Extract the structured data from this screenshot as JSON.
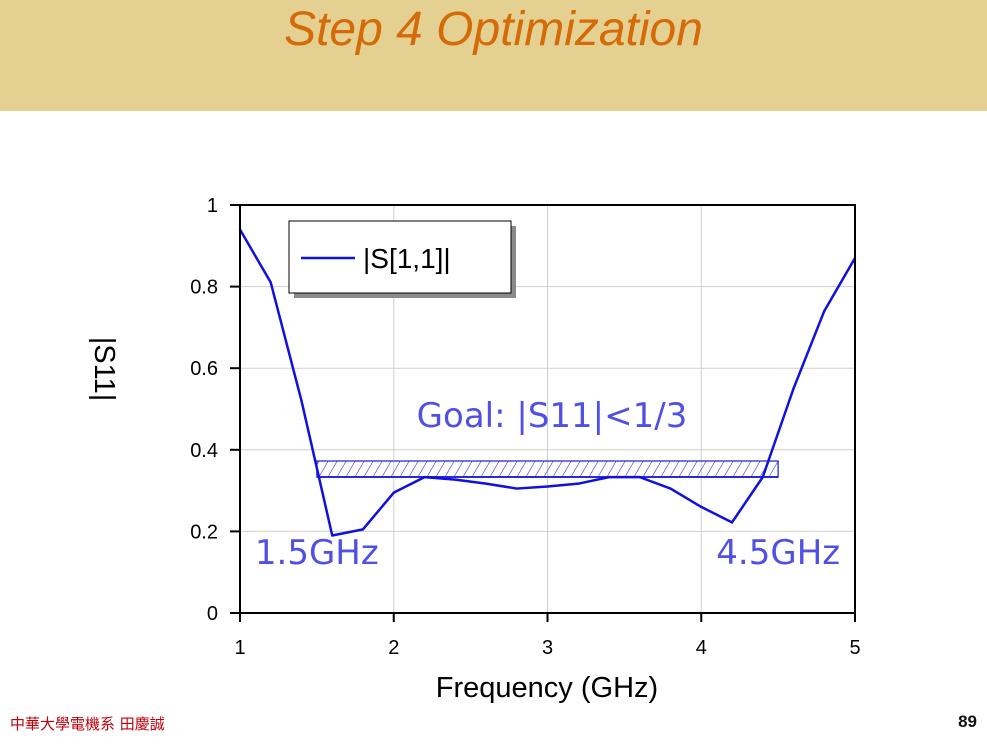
{
  "slide": {
    "title": "Step 4 Optimization",
    "footer_left": "中華大學電機系 田慶誠",
    "page_number": "89"
  },
  "colors": {
    "header_band": "#e4d192",
    "title": "#d46a08",
    "series": "#1010e0",
    "annotation": "#5050e6",
    "footer_text": "#c0000a"
  },
  "chart_data": {
    "type": "line",
    "xlabel": "Frequency (GHz)",
    "ylabel": "|S11|",
    "xlim": [
      1,
      5
    ],
    "ylim": [
      0,
      1
    ],
    "x_ticks": [
      "1",
      "2",
      "3",
      "4",
      "5"
    ],
    "y_ticks": [
      "0",
      "0.2",
      "0.4",
      "0.6",
      "0.8",
      "1"
    ],
    "grid": true,
    "legend_position": "top-left",
    "series": [
      {
        "name": "|S[1,1]|",
        "x": [
          1.0,
          1.2,
          1.4,
          1.6,
          1.8,
          2.0,
          2.2,
          2.4,
          2.6,
          2.8,
          3.0,
          3.2,
          3.4,
          3.6,
          3.8,
          4.0,
          4.2,
          4.4,
          4.6,
          4.8,
          5.0
        ],
        "y": [
          0.94,
          0.81,
          0.52,
          0.19,
          0.205,
          0.295,
          0.333,
          0.327,
          0.317,
          0.305,
          0.31,
          0.317,
          0.333,
          0.333,
          0.305,
          0.26,
          0.222,
          0.333,
          0.55,
          0.74,
          0.87
        ]
      }
    ],
    "goal": {
      "label": "Goal: |S11|<1/3",
      "x_start": 1.5,
      "x_end": 4.5,
      "y": 0.3333
    },
    "annotations": [
      {
        "text": "1.5GHz",
        "x": 1.5,
        "y": 0.15
      },
      {
        "text": "4.5GHz",
        "x": 4.5,
        "y": 0.15
      }
    ]
  }
}
